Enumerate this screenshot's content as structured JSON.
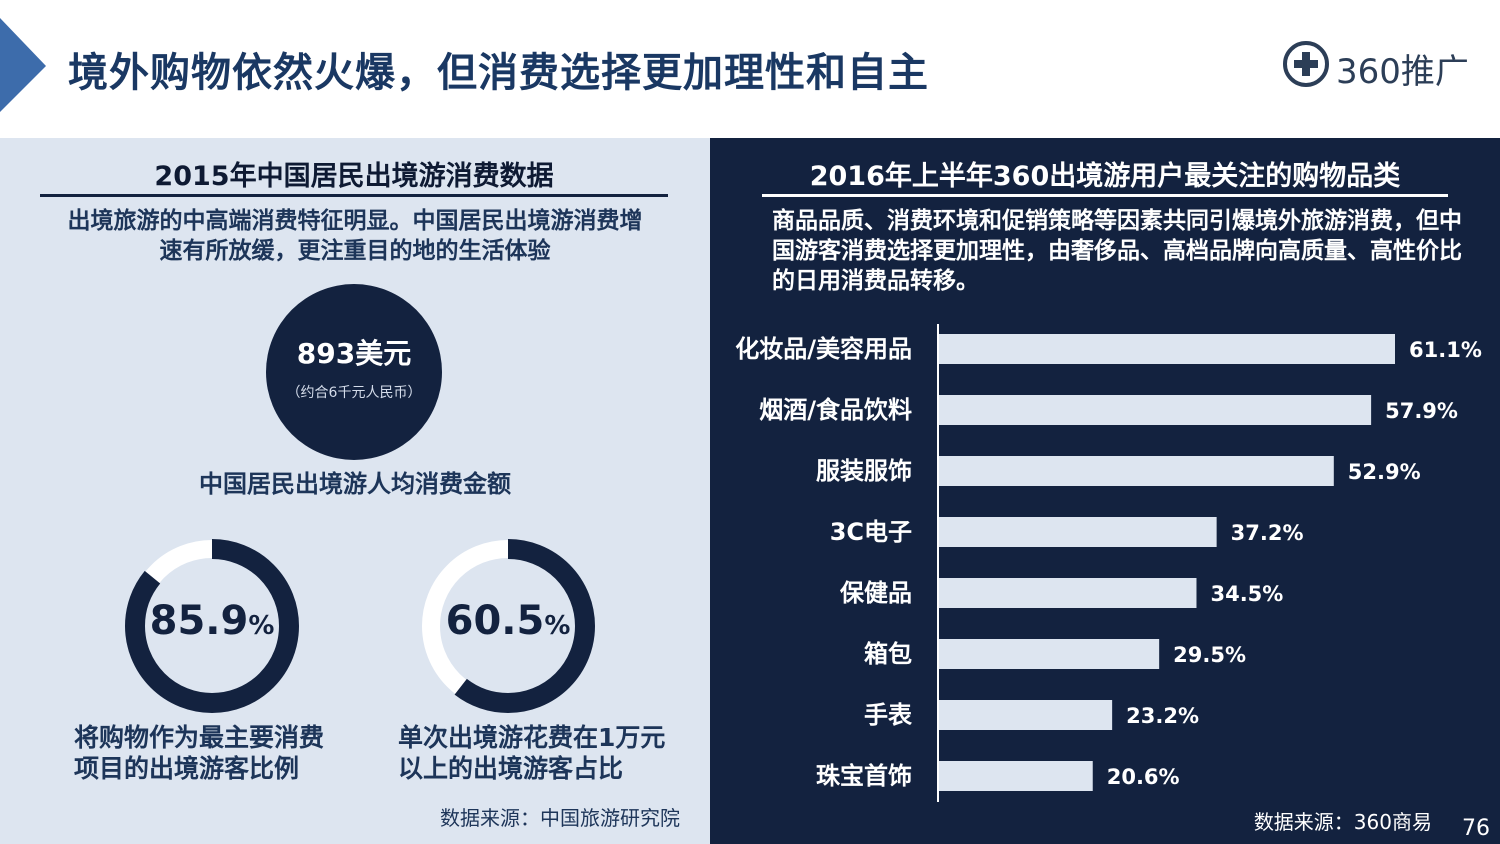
{
  "header": {
    "title": "境外购物依然火爆，但消费选择更加理性和自主",
    "logo_text": "360推广"
  },
  "left_panel": {
    "title": "2015年中国居民出境游消费数据",
    "description": "出境旅游的中高端消费特征明显。中国居民出境游消费增速有所放缓，更注重目的地的生活体验",
    "spend": {
      "value": "893美元",
      "note": "（约合6千元人民币）",
      "label": "中国居民出境游人均消费金额"
    },
    "donuts": [
      {
        "value": 85.9,
        "number": "85.9",
        "unit": "%",
        "label": "将购物作为最主要消费项目的出境游客比例"
      },
      {
        "value": 60.5,
        "number": "60.5",
        "unit": "%",
        "label": "单次出境游花费在1万元以上的出境游客占比"
      }
    ],
    "source": "数据来源：中国旅游研究院"
  },
  "right_panel": {
    "title": "2016年上半年360出境游用户最关注的购物品类",
    "description": "商品品质、消费环境和促销策略等因素共同引爆境外旅游消费，但中国游客消费选择更加理性，由奢侈品、高档品牌向高质量、高性价比的日用消费品转移。",
    "source": "数据来源：360商易"
  },
  "chart_data": {
    "type": "bar",
    "orientation": "horizontal",
    "categories": [
      "化妆品/美容用品",
      "烟酒/食品饮料",
      "服装服饰",
      "3C电子",
      "保健品",
      "箱包",
      "手表",
      "珠宝首饰"
    ],
    "values": [
      61.1,
      57.9,
      52.9,
      37.2,
      34.5,
      29.5,
      23.2,
      20.6
    ],
    "value_labels": [
      "61.1%",
      "57.9%",
      "52.9%",
      "37.2%",
      "34.5%",
      "29.5%",
      "23.2%",
      "20.6%"
    ],
    "xlim": [
      0,
      61.1
    ],
    "grid": false,
    "bar_color": "#dde5f0"
  },
  "page_number": "76",
  "colors": {
    "navy": "#13223f",
    "light_panel": "#dde5f0",
    "title_blue": "#1a3863",
    "arrow_blue": "#3d6cab"
  },
  "icons": {
    "logo": "plus-circle-icon"
  }
}
